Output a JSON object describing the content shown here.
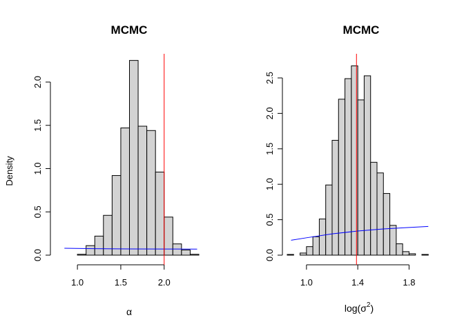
{
  "chart_data": [
    {
      "type": "bar",
      "subtype": "histogram",
      "title": "MCMC",
      "xlabel": "α",
      "ylabel": "Density",
      "xlim": [
        0.8,
        2.4
      ],
      "ylim": [
        0,
        2.3
      ],
      "x_ticks": [
        1.0,
        1.5,
        2.0
      ],
      "x_tick_labels": [
        "1.0",
        "1.5",
        "2.0"
      ],
      "y_ticks": [
        0.0,
        0.5,
        1.0,
        1.5,
        2.0
      ],
      "y_tick_labels": [
        "0.0",
        "0.5",
        "1.0",
        "1.5",
        "2.0"
      ],
      "bin_width": 0.1,
      "bins": [
        {
          "x0": 1.0,
          "x1": 1.1,
          "density": 0.01
        },
        {
          "x0": 1.1,
          "x1": 1.2,
          "density": 0.11
        },
        {
          "x0": 1.2,
          "x1": 1.3,
          "density": 0.22
        },
        {
          "x0": 1.3,
          "x1": 1.4,
          "density": 0.46
        },
        {
          "x0": 1.4,
          "x1": 1.5,
          "density": 0.92
        },
        {
          "x0": 1.5,
          "x1": 1.6,
          "density": 1.47
        },
        {
          "x0": 1.6,
          "x1": 1.7,
          "density": 2.25
        },
        {
          "x0": 1.7,
          "x1": 1.8,
          "density": 1.49
        },
        {
          "x0": 1.8,
          "x1": 1.9,
          "density": 1.44
        },
        {
          "x0": 1.9,
          "x1": 2.0,
          "density": 0.96
        },
        {
          "x0": 2.0,
          "x1": 2.1,
          "density": 0.44
        },
        {
          "x0": 2.1,
          "x1": 2.2,
          "density": 0.13
        },
        {
          "x0": 2.2,
          "x1": 2.3,
          "density": 0.06
        },
        {
          "x0": 2.3,
          "x1": 2.4,
          "density": 0.01
        }
      ],
      "vline": {
        "x": 2.0,
        "color": "#ff0000"
      },
      "curve": {
        "color": "#0000ff",
        "x": [
          0.85,
          1.2,
          1.6,
          2.0,
          2.38
        ],
        "y": [
          0.08,
          0.075,
          0.072,
          0.071,
          0.07
        ]
      },
      "bar_fill": "#d3d3d3"
    },
    {
      "type": "bar",
      "subtype": "histogram",
      "title": "MCMC",
      "xlabel_base": "log(σ",
      "xlabel_sup": "2",
      "xlabel_end": ")",
      "ylabel": "",
      "xlim": [
        0.85,
        1.97
      ],
      "ylim": [
        0,
        2.75
      ],
      "x_ticks": [
        1.0,
        1.4,
        1.8
      ],
      "x_tick_labels": [
        "1.0",
        "1.4",
        "1.8"
      ],
      "y_ticks": [
        0.0,
        0.5,
        1.0,
        1.5,
        2.0,
        2.5
      ],
      "y_tick_labels": [
        "0.0",
        "0.5",
        "1.0",
        "1.5",
        "2.0",
        "2.5"
      ],
      "bin_width": 0.05,
      "bins": [
        {
          "x0": 0.85,
          "x1": 0.9,
          "density": 0.01
        },
        {
          "x0": 0.9,
          "x1": 0.95,
          "density": 0.0
        },
        {
          "x0": 0.95,
          "x1": 1.0,
          "density": 0.03
        },
        {
          "x0": 1.0,
          "x1": 1.05,
          "density": 0.12
        },
        {
          "x0": 1.05,
          "x1": 1.1,
          "density": 0.26
        },
        {
          "x0": 1.1,
          "x1": 1.15,
          "density": 0.51
        },
        {
          "x0": 1.15,
          "x1": 1.2,
          "density": 0.99
        },
        {
          "x0": 1.2,
          "x1": 1.25,
          "density": 1.62
        },
        {
          "x0": 1.25,
          "x1": 1.3,
          "density": 2.2
        },
        {
          "x0": 1.3,
          "x1": 1.35,
          "density": 2.49
        },
        {
          "x0": 1.35,
          "x1": 1.4,
          "density": 2.67
        },
        {
          "x0": 1.4,
          "x1": 1.45,
          "density": 2.19
        },
        {
          "x0": 1.45,
          "x1": 1.5,
          "density": 2.53
        },
        {
          "x0": 1.5,
          "x1": 1.55,
          "density": 1.31
        },
        {
          "x0": 1.55,
          "x1": 1.6,
          "density": 1.16
        },
        {
          "x0": 1.6,
          "x1": 1.65,
          "density": 0.87
        },
        {
          "x0": 1.65,
          "x1": 1.7,
          "density": 0.42
        },
        {
          "x0": 1.7,
          "x1": 1.75,
          "density": 0.16
        },
        {
          "x0": 1.75,
          "x1": 1.8,
          "density": 0.05
        },
        {
          "x0": 1.8,
          "x1": 1.85,
          "density": 0.02
        },
        {
          "x0": 1.85,
          "x1": 1.9,
          "density": 0.0
        },
        {
          "x0": 1.9,
          "x1": 1.95,
          "density": 0.01
        }
      ],
      "vline": {
        "x": 1.39,
        "color": "#ff0000"
      },
      "curve": {
        "color": "#0000ff",
        "x": [
          0.88,
          1.0,
          1.2,
          1.4,
          1.6,
          1.8,
          1.95
        ],
        "y": [
          0.21,
          0.245,
          0.3,
          0.34,
          0.37,
          0.39,
          0.405
        ]
      },
      "bar_fill": "#d3d3d3"
    }
  ]
}
